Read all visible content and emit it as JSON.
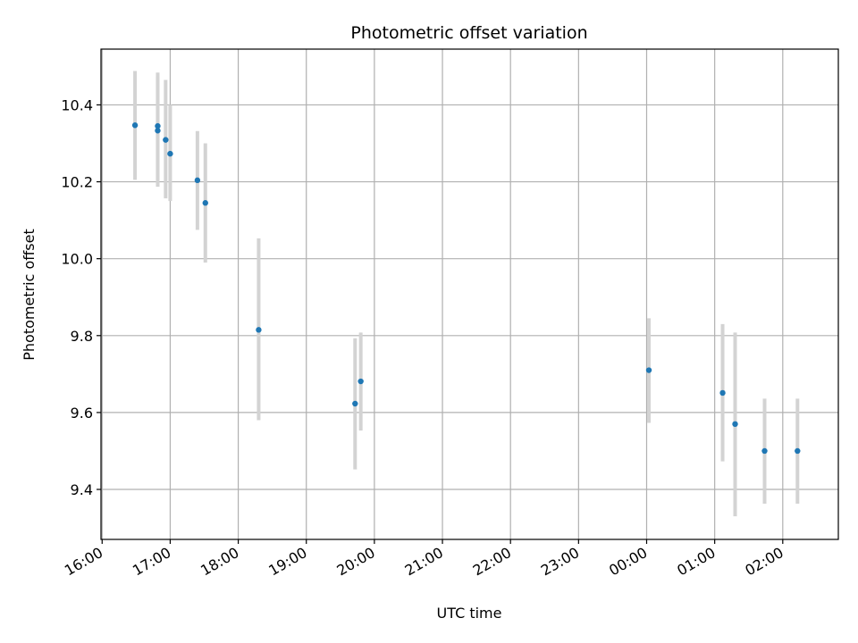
{
  "chart_data": {
    "type": "scatter",
    "title": "Photometric offset variation",
    "xlabel": "UTC time",
    "ylabel": "Photometric offset",
    "x_axis": {
      "kind": "time",
      "range": [
        "15:59",
        "02:49"
      ],
      "ticks": [
        "16:00",
        "17:00",
        "18:00",
        "19:00",
        "20:00",
        "21:00",
        "22:00",
        "23:00",
        "00:00",
        "01:00",
        "02:00"
      ]
    },
    "y_axis": {
      "range": [
        9.27,
        10.545
      ],
      "ticks": [
        "9.4",
        "9.6",
        "9.8",
        "10.0",
        "10.2",
        "10.4"
      ]
    },
    "grid": true,
    "series": [
      {
        "marker_color": "#1f77b4",
        "errorbar_color": "#d3d3d3",
        "points": [
          {
            "x": "16:29",
            "y": 10.347,
            "y_low": 10.205,
            "y_high": 10.488
          },
          {
            "x": "16:49",
            "y": 10.345,
            "y_low": 10.205,
            "y_high": 10.484
          },
          {
            "x": "16:49",
            "y": 10.333,
            "y_low": 10.187,
            "y_high": 10.474
          },
          {
            "x": "16:56",
            "y": 10.309,
            "y_low": 10.157,
            "y_high": 10.465
          },
          {
            "x": "17:00",
            "y": 10.273,
            "y_low": 10.15,
            "y_high": 10.4
          },
          {
            "x": "17:24",
            "y": 10.204,
            "y_low": 10.075,
            "y_high": 10.332
          },
          {
            "x": "17:31",
            "y": 10.145,
            "y_low": 9.99,
            "y_high": 10.3
          },
          {
            "x": "18:18",
            "y": 9.815,
            "y_low": 9.58,
            "y_high": 10.053
          },
          {
            "x": "19:43",
            "y": 9.623,
            "y_low": 9.452,
            "y_high": 9.793
          },
          {
            "x": "19:48",
            "y": 9.681,
            "y_low": 9.553,
            "y_high": 9.808
          },
          {
            "x": "00:02",
            "y": 9.71,
            "y_low": 9.573,
            "y_high": 9.845
          },
          {
            "x": "01:07",
            "y": 9.651,
            "y_low": 9.473,
            "y_high": 9.83
          },
          {
            "x": "01:18",
            "y": 9.57,
            "y_low": 9.33,
            "y_high": 9.808
          },
          {
            "x": "01:44",
            "y": 9.5,
            "y_low": 9.363,
            "y_high": 9.636
          },
          {
            "x": "02:13",
            "y": 9.5,
            "y_low": 9.363,
            "y_high": 9.636
          }
        ]
      }
    ]
  }
}
